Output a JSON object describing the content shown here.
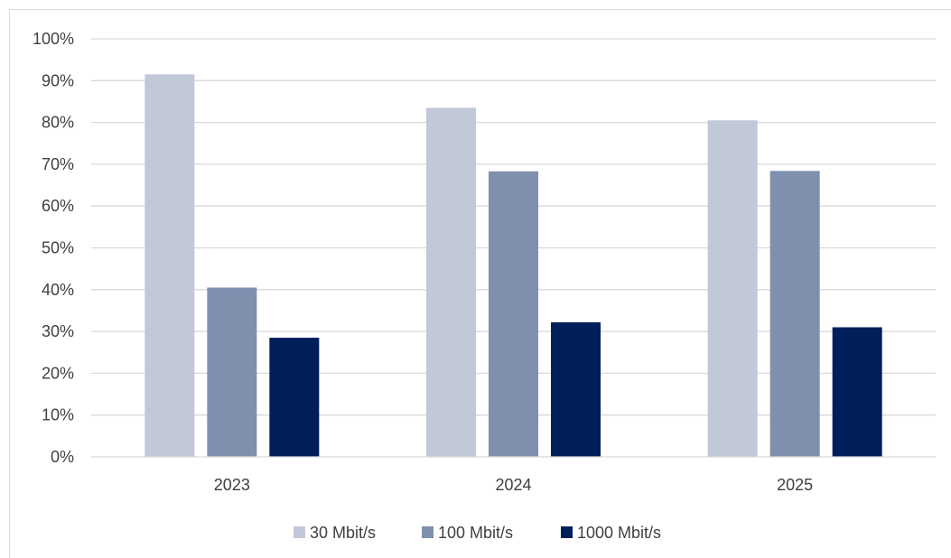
{
  "chart_data": {
    "type": "bar",
    "title": "",
    "xlabel": "",
    "ylabel": "",
    "categories": [
      "2023",
      "2024",
      "2025"
    ],
    "series": [
      {
        "name": "30 Mbit/s",
        "color": "#c1c8d8",
        "values": [
          91.5,
          83.5,
          80.5
        ]
      },
      {
        "name": "100 Mbit/s",
        "color": "#7f8fae",
        "values": [
          40.5,
          68.3,
          68.4
        ]
      },
      {
        "name": "1000 Mbit/s",
        "color": "#001e5a",
        "values": [
          28.5,
          32.2,
          31.0
        ]
      }
    ],
    "ylim": [
      0,
      100
    ],
    "yticks": [
      "0%",
      "10%",
      "20%",
      "30%",
      "40%",
      "50%",
      "60%",
      "70%",
      "80%",
      "90%",
      "100%"
    ],
    "grid": true,
    "legend_position": "bottom"
  }
}
